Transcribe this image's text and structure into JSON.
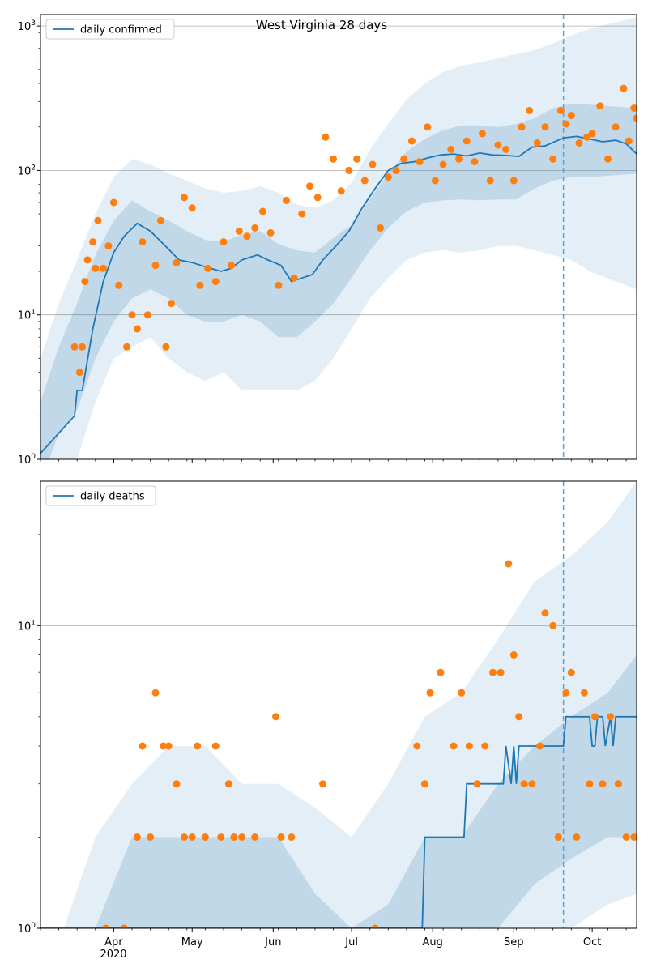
{
  "figure": {
    "title": "West Virginia 28 days",
    "x_ticks": [
      {
        "label": "Apr",
        "date": "2020-04-01"
      },
      {
        "label": "May",
        "date": "2020-05-01"
      },
      {
        "label": "Jun",
        "date": "2020-06-01"
      },
      {
        "label": "Jul",
        "date": "2020-07-01"
      },
      {
        "label": "Aug",
        "date": "2020-08-01"
      },
      {
        "label": "Sep",
        "date": "2020-09-01"
      },
      {
        "label": "Oct",
        "date": "2020-10-01"
      }
    ],
    "year_label": "2020",
    "forecast_start": "2020-09-20",
    "x_range": [
      "2020-03-04",
      "2020-10-18"
    ]
  },
  "chart_data": [
    {
      "type": "line",
      "legend": "daily confirmed",
      "legend_location": "upper-left",
      "y_scale": "log",
      "ylim": [
        1,
        1200
      ],
      "y_ticks": [
        1,
        10,
        100,
        1000
      ],
      "y_tick_labels": [
        "10^0",
        "10^1",
        "10^2",
        "10^3"
      ],
      "grid": "horizontal",
      "colors": {
        "median": "#1f77b4",
        "observed": "#ff7f0e",
        "band": "#1f77b4"
      },
      "median_x": [
        "2020-03-04",
        "2020-03-17",
        "2020-03-18",
        "2020-03-20",
        "2020-03-24",
        "2020-03-28",
        "2020-04-01",
        "2020-04-05",
        "2020-04-10",
        "2020-04-15",
        "2020-04-20",
        "2020-04-26",
        "2020-05-01",
        "2020-05-08",
        "2020-05-12",
        "2020-05-16",
        "2020-05-20",
        "2020-05-26",
        "2020-05-30",
        "2020-06-04",
        "2020-06-08",
        "2020-06-12",
        "2020-06-16",
        "2020-06-20",
        "2020-06-25",
        "2020-06-30",
        "2020-07-05",
        "2020-07-10",
        "2020-07-15",
        "2020-07-20",
        "2020-07-25",
        "2020-07-30",
        "2020-08-04",
        "2020-08-09",
        "2020-08-14",
        "2020-08-19",
        "2020-08-24",
        "2020-08-29",
        "2020-09-03",
        "2020-09-08",
        "2020-09-13",
        "2020-09-20",
        "2020-09-25",
        "2020-09-30",
        "2020-10-05",
        "2020-10-10",
        "2020-10-14",
        "2020-10-18"
      ],
      "median_y": [
        1.1,
        2,
        3,
        3,
        8,
        17,
        27,
        35,
        43,
        38,
        31,
        24,
        23,
        21,
        20,
        21,
        24,
        26,
        24,
        22,
        17,
        18,
        19,
        24,
        30,
        38,
        55,
        75,
        100,
        112,
        115,
        122,
        128,
        130,
        126,
        132,
        128,
        127,
        125,
        145,
        148,
        168,
        172,
        165,
        158,
        162,
        153,
        130
      ],
      "observed_x": [
        "2020-03-17",
        "2020-03-19",
        "2020-03-20",
        "2020-03-21",
        "2020-03-22",
        "2020-03-24",
        "2020-03-25",
        "2020-03-26",
        "2020-03-28",
        "2020-03-30",
        "2020-04-01",
        "2020-04-03",
        "2020-04-06",
        "2020-04-08",
        "2020-04-10",
        "2020-04-12",
        "2020-04-14",
        "2020-04-17",
        "2020-04-19",
        "2020-04-21",
        "2020-04-23",
        "2020-04-25",
        "2020-04-28",
        "2020-05-01",
        "2020-05-04",
        "2020-05-07",
        "2020-05-10",
        "2020-05-13",
        "2020-05-16",
        "2020-05-19",
        "2020-05-22",
        "2020-05-25",
        "2020-05-28",
        "2020-05-31",
        "2020-06-03",
        "2020-06-06",
        "2020-06-09",
        "2020-06-12",
        "2020-06-15",
        "2020-06-18",
        "2020-06-21",
        "2020-06-24",
        "2020-06-27",
        "2020-06-30",
        "2020-07-03",
        "2020-07-06",
        "2020-07-09",
        "2020-07-12",
        "2020-07-15",
        "2020-07-18",
        "2020-07-21",
        "2020-07-24",
        "2020-07-27",
        "2020-07-30",
        "2020-08-02",
        "2020-08-05",
        "2020-08-08",
        "2020-08-11",
        "2020-08-14",
        "2020-08-17",
        "2020-08-20",
        "2020-08-23",
        "2020-08-26",
        "2020-08-29",
        "2020-09-01",
        "2020-09-04",
        "2020-09-07",
        "2020-09-10",
        "2020-09-13",
        "2020-09-16",
        "2020-09-19",
        "2020-09-21",
        "2020-09-23",
        "2020-09-26",
        "2020-09-29",
        "2020-10-01",
        "2020-10-04",
        "2020-10-07",
        "2020-10-10",
        "2020-10-13",
        "2020-10-15",
        "2020-10-17",
        "2020-10-18"
      ],
      "observed_y": [
        6,
        4,
        6,
        17,
        24,
        32,
        21,
        45,
        21,
        30,
        60,
        16,
        6,
        10,
        8,
        32,
        10,
        22,
        45,
        6,
        12,
        23,
        65,
        55,
        16,
        21,
        17,
        32,
        22,
        38,
        35,
        40,
        52,
        37,
        16,
        62,
        18,
        50,
        78,
        65,
        170,
        120,
        72,
        100,
        120,
        85,
        110,
        40,
        90,
        100,
        120,
        160,
        115,
        200,
        85,
        110,
        140,
        120,
        160,
        115,
        180,
        85,
        150,
        140,
        85,
        200,
        260,
        155,
        200,
        120,
        260,
        210,
        240,
        155,
        170,
        180,
        280,
        120,
        200,
        370,
        160,
        270,
        230
      ],
      "band_inner_lower": [
        0.7,
        1.5,
        2.2,
        5,
        9,
        13,
        15,
        13,
        10,
        9,
        9,
        10,
        9,
        7,
        7,
        9,
        12,
        18,
        28,
        40,
        52,
        60,
        62,
        63,
        62,
        63,
        63,
        75,
        85,
        90,
        90,
        95
      ],
      "band_inner_upper": [
        2.5,
        6,
        12,
        26,
        45,
        62,
        52,
        45,
        38,
        33,
        32,
        36,
        38,
        31,
        28,
        27,
        34,
        42,
        63,
        95,
        135,
        165,
        190,
        205,
        205,
        200,
        210,
        230,
        270,
        290,
        285,
        270
      ],
      "band_outer_lower": [
        0.4,
        0.7,
        1,
        2.5,
        5,
        6,
        7,
        5,
        4,
        3.5,
        4,
        3,
        3,
        3,
        3,
        3.5,
        5,
        8,
        13,
        18,
        24,
        27,
        28,
        27,
        28,
        30,
        30,
        28,
        26,
        24,
        20,
        15
      ],
      "band_outer_upper": [
        5,
        12,
        24,
        50,
        90,
        120,
        110,
        95,
        85,
        75,
        70,
        72,
        78,
        70,
        58,
        55,
        62,
        82,
        140,
        210,
        310,
        400,
        480,
        530,
        560,
        600,
        640,
        680,
        760,
        860,
        960,
        1150
      ],
      "band_x": [
        "2020-03-04",
        "2020-03-11",
        "2020-03-18",
        "2020-03-25",
        "2020-04-01",
        "2020-04-08",
        "2020-04-15",
        "2020-04-22",
        "2020-04-29",
        "2020-05-06",
        "2020-05-13",
        "2020-05-20",
        "2020-05-27",
        "2020-06-03",
        "2020-06-10",
        "2020-06-17",
        "2020-06-24",
        "2020-07-01",
        "2020-07-08",
        "2020-07-15",
        "2020-07-22",
        "2020-07-29",
        "2020-08-05",
        "2020-08-12",
        "2020-08-19",
        "2020-08-26",
        "2020-09-02",
        "2020-09-09",
        "2020-09-16",
        "2020-09-23",
        "2020-09-30",
        "2020-10-18"
      ]
    },
    {
      "type": "line",
      "legend": "daily deaths",
      "legend_location": "upper-left",
      "y_scale": "log",
      "ylim": [
        1,
        30
      ],
      "y_ticks": [
        1,
        10
      ],
      "y_tick_labels": [
        "10^0",
        "10^1"
      ],
      "grid": "horizontal",
      "colors": {
        "median": "#1f77b4",
        "observed": "#ff7f0e",
        "band": "#1f77b4"
      },
      "median_x": [
        "2020-03-04",
        "2020-07-28",
        "2020-07-29",
        "2020-08-13",
        "2020-08-14",
        "2020-08-28",
        "2020-08-29",
        "2020-08-31",
        "2020-09-01",
        "2020-09-02",
        "2020-09-03",
        "2020-09-04",
        "2020-09-05",
        "2020-09-06",
        "2020-09-20",
        "2020-09-21",
        "2020-09-30",
        "2020-10-01",
        "2020-10-02",
        "2020-10-03",
        "2020-10-05",
        "2020-10-06",
        "2020-10-08",
        "2020-10-09",
        "2020-10-10",
        "2020-10-11",
        "2020-10-18"
      ],
      "median_y": [
        1,
        1,
        2,
        2,
        3,
        3,
        4,
        3,
        4,
        3,
        4,
        4,
        4,
        4,
        4,
        5,
        5,
        4,
        4,
        5,
        5,
        4,
        5,
        4,
        5,
        5,
        5
      ],
      "observed_x": [
        "2020-03-29",
        "2020-04-05",
        "2020-04-10",
        "2020-04-12",
        "2020-04-15",
        "2020-04-17",
        "2020-04-20",
        "2020-04-22",
        "2020-04-25",
        "2020-04-28",
        "2020-05-01",
        "2020-05-03",
        "2020-05-06",
        "2020-05-10",
        "2020-05-12",
        "2020-05-15",
        "2020-05-17",
        "2020-05-20",
        "2020-05-25",
        "2020-06-02",
        "2020-06-04",
        "2020-06-08",
        "2020-06-20",
        "2020-07-10",
        "2020-07-26",
        "2020-07-29",
        "2020-07-31",
        "2020-08-04",
        "2020-08-09",
        "2020-08-12",
        "2020-08-15",
        "2020-08-18",
        "2020-08-21",
        "2020-08-24",
        "2020-08-27",
        "2020-08-30",
        "2020-09-01",
        "2020-09-03",
        "2020-09-05",
        "2020-09-08",
        "2020-09-11",
        "2020-09-13",
        "2020-09-16",
        "2020-09-18",
        "2020-09-21",
        "2020-09-23",
        "2020-09-25",
        "2020-09-28",
        "2020-09-30",
        "2020-10-02",
        "2020-10-05",
        "2020-10-08",
        "2020-10-11",
        "2020-10-14",
        "2020-10-17"
      ],
      "observed_y": [
        1,
        1,
        2,
        4,
        2,
        6,
        4,
        4,
        3,
        2,
        2,
        4,
        2,
        4,
        2,
        3,
        2,
        2,
        2,
        5,
        2,
        2,
        3,
        1,
        4,
        3,
        6,
        7,
        4,
        6,
        4,
        3,
        4,
        7,
        7,
        16,
        8,
        5,
        3,
        3,
        4,
        11,
        10,
        2,
        6,
        7,
        2,
        6,
        3,
        5,
        3,
        5,
        3,
        2,
        2
      ],
      "band_x": [
        "2020-03-04",
        "2020-03-25",
        "2020-04-08",
        "2020-04-22",
        "2020-05-06",
        "2020-05-20",
        "2020-06-03",
        "2020-06-17",
        "2020-07-01",
        "2020-07-15",
        "2020-07-29",
        "2020-08-12",
        "2020-08-26",
        "2020-09-09",
        "2020-09-23",
        "2020-10-07",
        "2020-10-18"
      ],
      "band_inner_lower": [
        0.5,
        0.5,
        0.5,
        0.5,
        0.5,
        0.5,
        0.5,
        0.5,
        0.5,
        0.5,
        0.6,
        0.8,
        1,
        1.4,
        1.7,
        2,
        2
      ],
      "band_inner_upper": [
        0.6,
        1,
        2,
        2,
        2,
        2,
        2,
        1.3,
        1,
        1.2,
        2,
        2,
        3,
        4,
        5,
        6,
        8
      ],
      "band_outer_lower": [
        0.5,
        0.5,
        0.5,
        0.5,
        0.5,
        0.5,
        0.5,
        0.5,
        0.5,
        0.5,
        0.5,
        0.5,
        0.6,
        0.8,
        1,
        1.2,
        1.3
      ],
      "band_outer_upper": [
        0.6,
        2,
        3,
        4,
        4,
        3,
        3,
        2.5,
        2,
        3,
        5,
        6,
        9,
        14,
        17,
        22,
        30
      ]
    }
  ]
}
